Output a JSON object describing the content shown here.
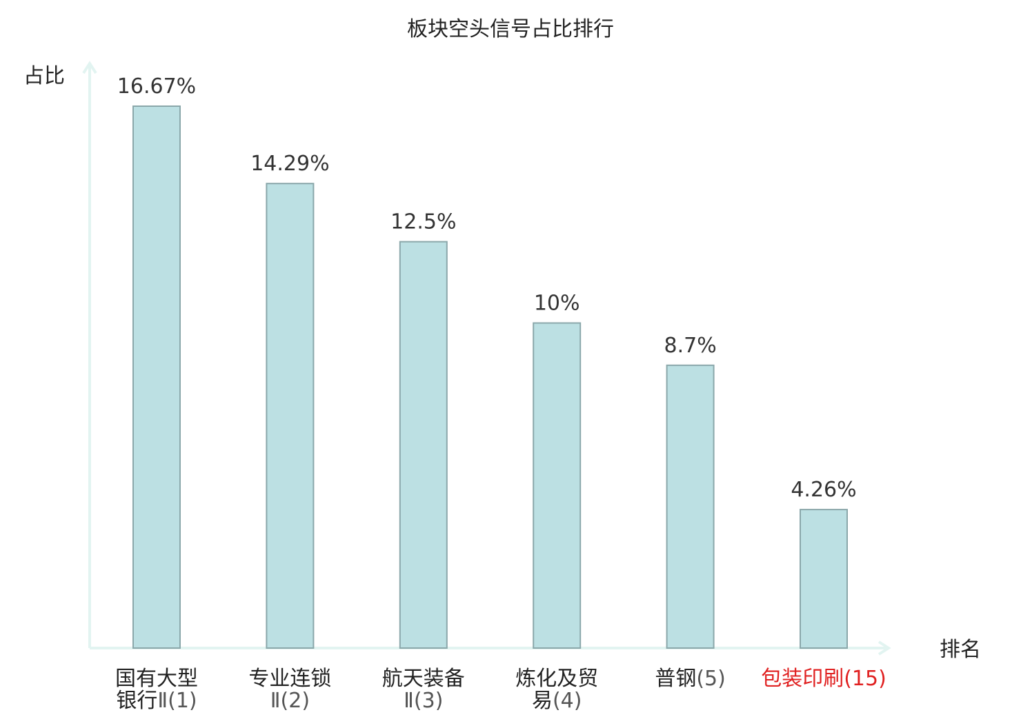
{
  "chart_data": {
    "type": "bar",
    "title": "板块空头信号占比排行",
    "ylabel": "占比",
    "xlabel": "排名",
    "ylim": [
      0,
      18.5
    ],
    "grid": false,
    "legend": "none",
    "categories": [
      {
        "lines": [
          {
            "name": "国有大型",
            "rank": ""
          },
          {
            "name": "银行",
            "rank": "Ⅱ(1)"
          }
        ],
        "highlight": false
      },
      {
        "lines": [
          {
            "name": "专业连锁",
            "rank": ""
          },
          {
            "name": "",
            "rank": "Ⅱ(2)"
          }
        ],
        "highlight": false
      },
      {
        "lines": [
          {
            "name": "航天装备",
            "rank": ""
          },
          {
            "name": "",
            "rank": "Ⅱ(3)"
          }
        ],
        "highlight": false
      },
      {
        "lines": [
          {
            "name": "炼化及贸",
            "rank": ""
          },
          {
            "name": "易",
            "rank": "(4)"
          }
        ],
        "highlight": false
      },
      {
        "lines": [
          {
            "name": "普钢",
            "rank": "(5)"
          }
        ],
        "highlight": false
      },
      {
        "lines": [
          {
            "name": "包装印刷",
            "rank": "(15)"
          }
        ],
        "highlight": true
      }
    ],
    "values": [
      16.67,
      14.29,
      12.5,
      10,
      8.7,
      4.26
    ],
    "value_labels": [
      "16.67%",
      "14.29%",
      "12.5%",
      "10%",
      "8.7%",
      "4.26%"
    ],
    "colors": {
      "bar_fill": "#bce0e3",
      "bar_stroke": "#8aa7aa",
      "axis": "#e2f4f1",
      "highlight": "#e02020"
    }
  }
}
